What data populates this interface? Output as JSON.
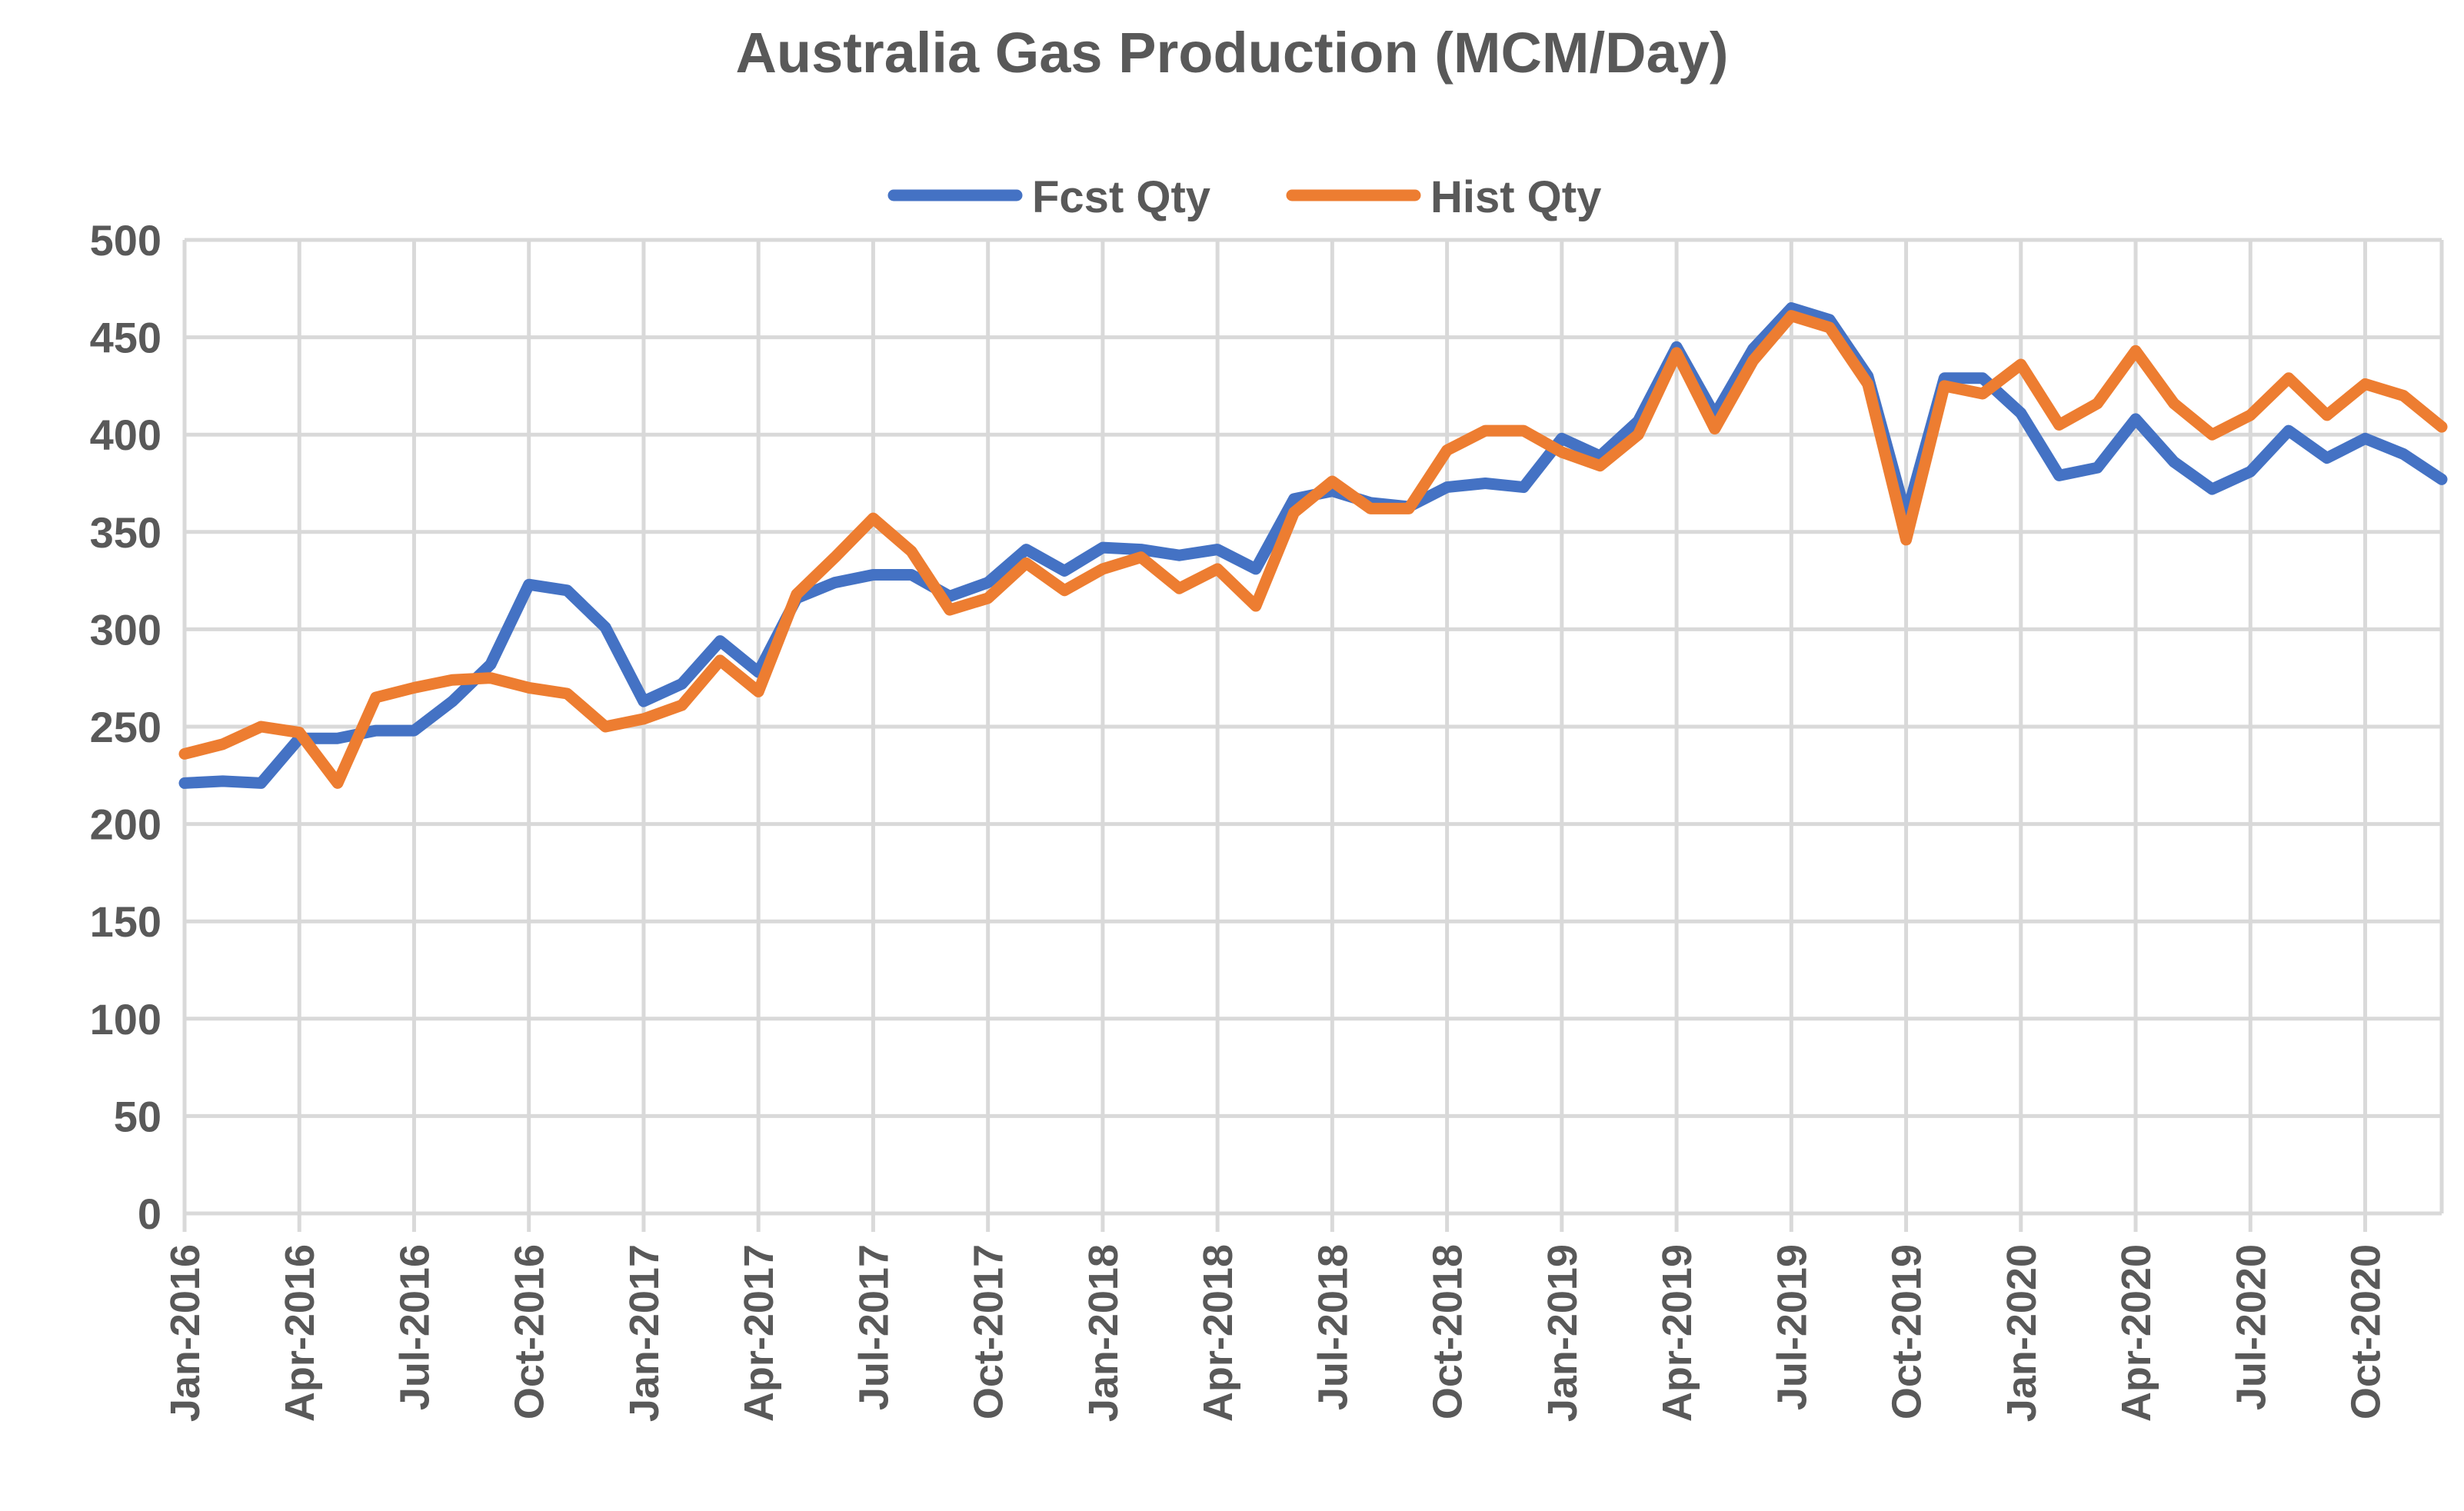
{
  "chart_data": {
    "type": "line",
    "title": "Australia Gas Production (MCM/Day)",
    "xlabel": "",
    "ylabel": "",
    "ylim": [
      0,
      500
    ],
    "yticks": [
      "0",
      "50",
      "100",
      "150",
      "200",
      "250",
      "300",
      "350",
      "400",
      "450",
      "500"
    ],
    "grid": true,
    "legend_position": "top",
    "x_tick_labels": [
      "Jan-2016",
      "Apr-2016",
      "Jul-2016",
      "Oct-2016",
      "Jan-2017",
      "Apr-2017",
      "Jul-2017",
      "Oct-2017",
      "Jan-2018",
      "Apr-2018",
      "Jul-2018",
      "Oct-2018",
      "Jan-2019",
      "Apr-2019",
      "Jul-2019",
      "Oct-2019",
      "Jan-2020",
      "Apr-2020",
      "Jul-2020",
      "Oct-2020"
    ],
    "categories": [
      "Jan-2016",
      "Feb-2016",
      "Mar-2016",
      "Apr-2016",
      "May-2016",
      "Jun-2016",
      "Jul-2016",
      "Aug-2016",
      "Sep-2016",
      "Oct-2016",
      "Nov-2016",
      "Dec-2016",
      "Jan-2017",
      "Feb-2017",
      "Mar-2017",
      "Apr-2017",
      "May-2017",
      "Jun-2017",
      "Jul-2017",
      "Aug-2017",
      "Sep-2017",
      "Oct-2017",
      "Nov-2017",
      "Dec-2017",
      "Jan-2018",
      "Feb-2018",
      "Mar-2018",
      "Apr-2018",
      "May-2018",
      "Jun-2018",
      "Jul-2018",
      "Aug-2018",
      "Sep-2018",
      "Oct-2018",
      "Nov-2018",
      "Dec-2018",
      "Jan-2019",
      "Feb-2019",
      "Mar-2019",
      "Apr-2019",
      "May-2019",
      "Jun-2019",
      "Jul-2019",
      "Aug-2019",
      "Sep-2019",
      "Oct-2019",
      "Nov-2019",
      "Dec-2019",
      "Jan-2020",
      "Feb-2020",
      "Mar-2020",
      "Apr-2020",
      "May-2020",
      "Jun-2020",
      "Jul-2020",
      "Aug-2020",
      "Sep-2020",
      "Oct-2020",
      "Nov-2020",
      "Dec-2020"
    ],
    "series": [
      {
        "name": "Fcst Qty",
        "color": "#4472c4",
        "values": [
          221,
          222,
          221,
          244,
          244,
          248,
          248,
          263,
          282,
          323,
          320,
          301,
          263,
          272,
          294,
          278,
          316,
          324,
          328,
          328,
          317,
          324,
          341,
          330,
          342,
          341,
          338,
          341,
          331,
          367,
          371,
          365,
          363,
          373,
          375,
          373,
          398,
          389,
          407,
          445,
          410,
          444,
          465,
          459,
          430,
          358,
          429,
          429,
          411,
          379,
          383,
          408,
          386,
          372,
          381,
          402,
          388,
          398,
          390,
          377
        ]
      },
      {
        "name": "Hist Qty",
        "color": "#ed7d31",
        "values": [
          236,
          241,
          250,
          247,
          221,
          265,
          270,
          274,
          275,
          270,
          267,
          250,
          254,
          261,
          284,
          268,
          318,
          337,
          357,
          340,
          310,
          316,
          334,
          320,
          331,
          337,
          321,
          331,
          312,
          360,
          376,
          362,
          362,
          392,
          402,
          402,
          391,
          384,
          400,
          442,
          403,
          438,
          461,
          455,
          426,
          346,
          425,
          421,
          436,
          405,
          416,
          443,
          416,
          400,
          410,
          429,
          410,
          426,
          420,
          404
        ]
      }
    ]
  }
}
